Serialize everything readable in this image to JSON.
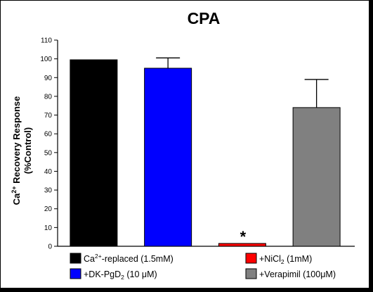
{
  "chart_data": {
    "type": "bar",
    "title": "CPA",
    "ylabel": {
      "line1_pre": "Ca",
      "line1_sup": "2+",
      "line1_post": " Recovery Response",
      "line2": "(%Control)"
    },
    "ylim": [
      0,
      110
    ],
    "yticks": [
      0,
      10,
      20,
      30,
      40,
      50,
      60,
      70,
      80,
      90,
      100,
      110
    ],
    "grid": false,
    "legend_position": "bottom",
    "categories": [
      "Ca2+-replaced (1.5mM)",
      "+DK-PgD2 (10 μM)",
      "+NiCl2 (1mM)",
      "+Verapimil (100μM)"
    ],
    "values": [
      99.5,
      95,
      1.5,
      74
    ],
    "error_up": [
      0,
      5.5,
      0,
      15
    ],
    "colors": [
      "#000000",
      "#0000ff",
      "#ff0000",
      "#808080"
    ],
    "annotations": [
      {
        "bar_index": 2,
        "text": "*"
      }
    ]
  },
  "legend": [
    {
      "pre": "Ca",
      "sup": "2+",
      "post": "-replaced (1.5mM)"
    },
    {
      "pre": "+DK-PgD",
      "sub": "2",
      "post": " (10 μM)"
    },
    {
      "pre": "+NiCl",
      "sub": "2",
      "post": " (1mM)"
    },
    {
      "pre": "+Verapimil (100",
      "mu": "μ",
      "post": "M)"
    }
  ]
}
